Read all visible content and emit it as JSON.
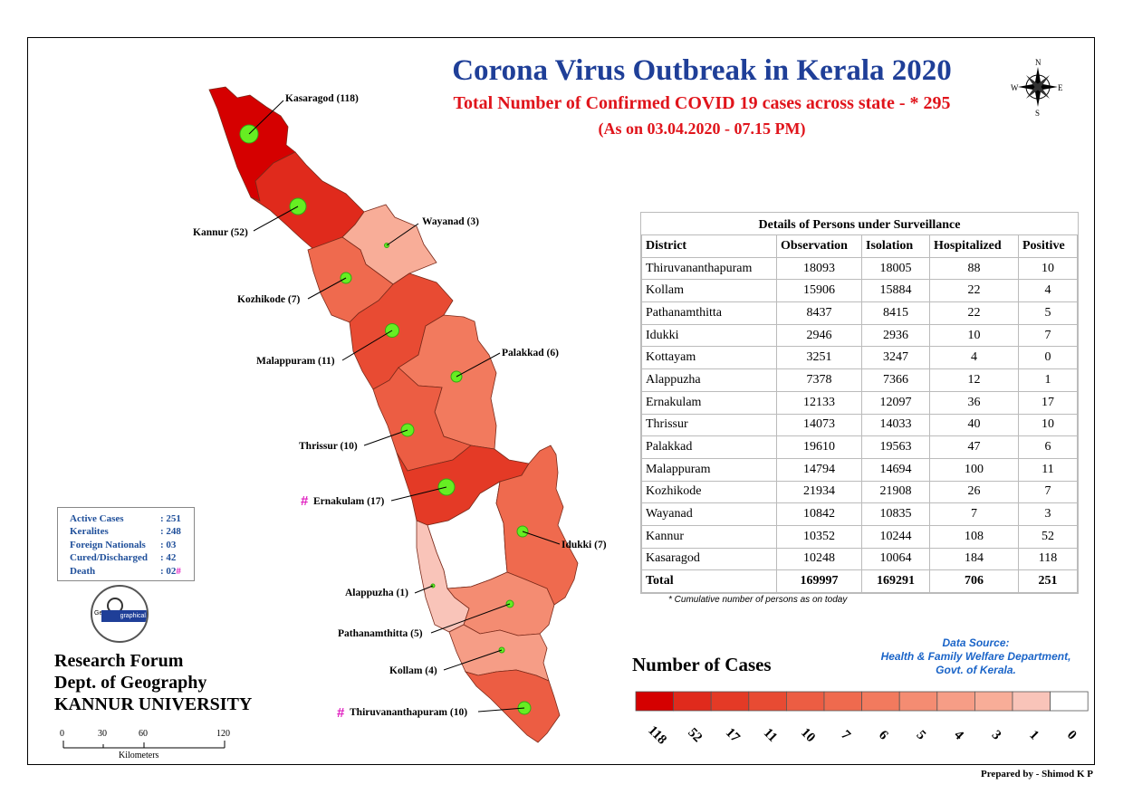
{
  "title": "Corona Virus Outbreak in Kerala 2020",
  "subtitle": "Total Number of Confirmed COVID 19 cases across state - * 295",
  "as_on": "(As on 03.04.2020 - 07.15 PM)",
  "compass": {
    "n": "N",
    "s": "S",
    "e": "E",
    "w": "W",
    "icon": "compass-rose-icon"
  },
  "map_labels": {
    "kasaragod": "Kasaragod (118)",
    "kannur": "Kannur (52)",
    "wayanad": "Wayanad (3)",
    "kozhikode": "Kozhikode (7)",
    "malappuram": "Malappuram (11)",
    "palakkad": "Palakkad (6)",
    "thrissur": "Thrissur (10)",
    "ernakulam": "Ernakulam (17)",
    "idukki": "Idukki (7)",
    "alappuzha": "Alappuzha (1)",
    "pathanamthitta": "Pathanamthitta (5)",
    "kollam": "Kollam (4)",
    "thiruvananthapuram": "Thiruvananthapuram (10)",
    "hash": "#"
  },
  "district_cases": {
    "Kasaragod": 118,
    "Kannur": 52,
    "Wayanad": 3,
    "Kozhikode": 7,
    "Malappuram": 11,
    "Palakkad": 6,
    "Thrissur": 10,
    "Ernakulam": 17,
    "Idukki": 7,
    "Kottayam": 0,
    "Alappuzha": 1,
    "Pathanamthitta": 5,
    "Kollam": 4,
    "Thiruvananthapuram": 10
  },
  "stats_box": [
    {
      "label": "Active Cases",
      "value": ": 251",
      "mark": ""
    },
    {
      "label": "Keralites",
      "value": ": 248",
      "mark": ""
    },
    {
      "label": "Foreign Nationals",
      "value": ": 03",
      "mark": ""
    },
    {
      "label": "Cured/Discharged",
      "value": ": 42",
      "mark": ""
    },
    {
      "label": "Death",
      "value": ": 02",
      "mark": "#"
    }
  ],
  "logo": {
    "text_left": "Ge",
    "text_right": "graphical",
    "icon": "geographical-logo-icon"
  },
  "org": {
    "line1": "Research Forum",
    "line2": "Dept. of Geography",
    "line3": "KANNUR UNIVERSITY"
  },
  "scale": {
    "ticks": [
      "0",
      "30",
      "60",
      "120"
    ],
    "unit": "Kilometers"
  },
  "table": {
    "caption": "Details of Persons under Surveillance",
    "headers": [
      "District",
      "Observation",
      "Isolation",
      "Hospitalized",
      "Positive"
    ],
    "rows": [
      [
        "Thiruvananthapuram",
        "18093",
        "18005",
        "88",
        "10"
      ],
      [
        "Kollam",
        "15906",
        "15884",
        "22",
        "4"
      ],
      [
        "Pathanamthitta",
        "8437",
        "8415",
        "22",
        "5"
      ],
      [
        "Idukki",
        "2946",
        "2936",
        "10",
        "7"
      ],
      [
        "Kottayam",
        "3251",
        "3247",
        "4",
        "0"
      ],
      [
        "Alappuzha",
        "7378",
        "7366",
        "12",
        "1"
      ],
      [
        "Ernakulam",
        "12133",
        "12097",
        "36",
        "17"
      ],
      [
        "Thrissur",
        "14073",
        "14033",
        "40",
        "10"
      ],
      [
        "Palakkad",
        "19610",
        "19563",
        "47",
        "6"
      ],
      [
        "Malappuram",
        "14794",
        "14694",
        "100",
        "11"
      ],
      [
        "Kozhikode",
        "21934",
        "21908",
        "26",
        "7"
      ],
      [
        "Wayanad",
        "10842",
        "10835",
        "7",
        "3"
      ],
      [
        "Kannur",
        "10352",
        "10244",
        "108",
        "52"
      ],
      [
        "Kasaragod",
        "10248",
        "10064",
        "184",
        "118"
      ]
    ],
    "total": [
      "Total",
      "169997",
      "169291",
      "706",
      "251"
    ],
    "note": "* Cumulative number of persons as on today"
  },
  "source": {
    "line1": "Data Source:",
    "line2": "Health & Family Welfare Department,",
    "line3": "Govt. of Kerala."
  },
  "legend": {
    "title": "Number of Cases",
    "values": [
      "118",
      "52",
      "17",
      "11",
      "10",
      "7",
      "6",
      "5",
      "4",
      "3",
      "1",
      "0"
    ],
    "colors": [
      "#d50000",
      "#e02a1c",
      "#e43a26",
      "#e84b33",
      "#ec5d43",
      "#ef6a4e",
      "#f27a5e",
      "#f48c72",
      "#f69d86",
      "#f8ad98",
      "#f9c4b9",
      "#ffffff"
    ]
  },
  "prepared_by": "Prepared by - Shimod K P"
}
